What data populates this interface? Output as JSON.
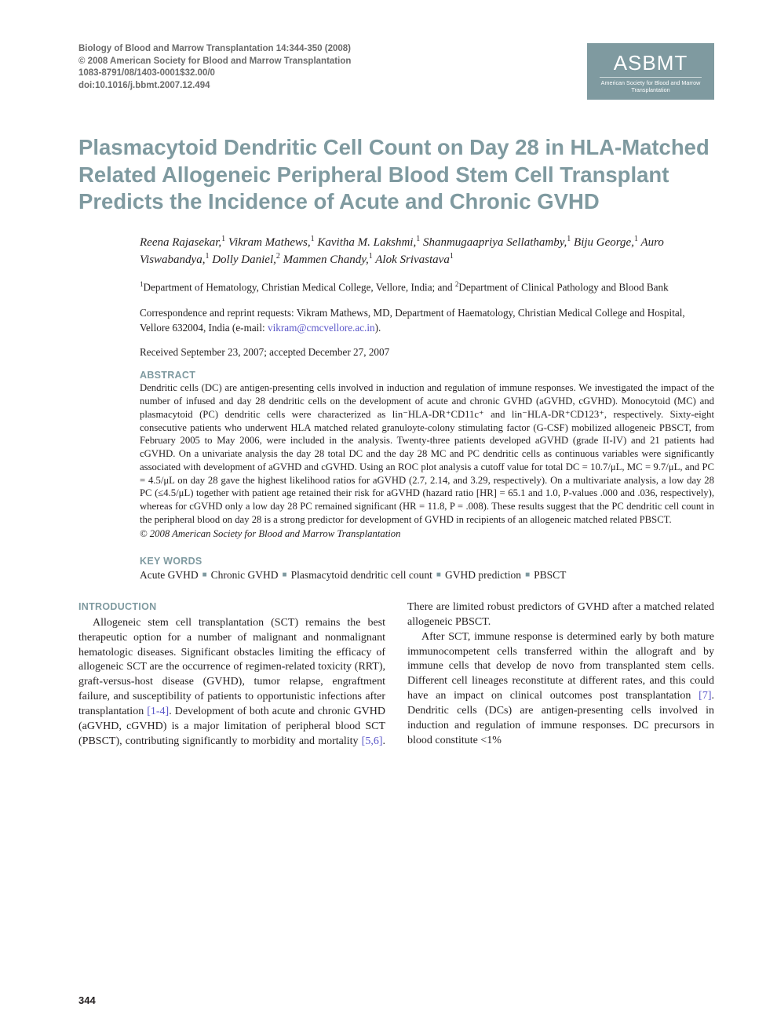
{
  "journal_meta": {
    "line1": "Biology of Blood and Marrow Transplantation 14:344-350 (2008)",
    "line2": "© 2008 American Society for Blood and Marrow Transplantation",
    "line3": "1083-8791/08/1403-0001$32.00/0",
    "line4": "doi:10.1016/j.bbmt.2007.12.494"
  },
  "logo": {
    "main": "ASBMT",
    "sub": "American Society for Blood and Marrow Transplantation"
  },
  "colors": {
    "teal": "#7f9aa0",
    "meta_gray": "#6b6b6b",
    "link": "#5b57c9",
    "text": "#231f20",
    "background": "#ffffff"
  },
  "title": "Plasmacytoid Dendritic Cell Count on Day 28 in HLA-Matched Related Allogeneic Peripheral Blood Stem Cell Transplant Predicts the Incidence of Acute and Chronic GVHD",
  "authors_html": "Reena Rajasekar,<sup>1</sup> Vikram Mathews,<sup>1</sup> Kavitha M. Lakshmi,<sup>1</sup> Shanmugaapriya Sellathamby,<sup>1</sup> Biju George,<sup>1</sup> Auro Viswabandya,<sup>1</sup> Dolly Daniel,<sup>2</sup> Mammen Chandy,<sup>1</sup> Alok Srivastava<sup>1</sup>",
  "affil_html": "<sup>1</sup>Department of Hematology, Christian Medical College, Vellore, India; and <sup>2</sup>Department of Clinical Pathology and Blood Bank",
  "corr_pre": "Correspondence and reprint requests: Vikram Mathews, MD, Department of Haematology, Christian Medical College and Hospital, Vellore 632004, India (e-mail: ",
  "corr_email": "vikram@cmcvellore.ac.in",
  "corr_post": ").",
  "dates": "Received September 23, 2007; accepted December 27, 2007",
  "labels": {
    "abstract": "ABSTRACT",
    "keywords": "KEY WORDS",
    "introduction": "INTRODUCTION"
  },
  "abstract": "Dendritic cells (DC) are antigen-presenting cells involved in induction and regulation of immune responses. We investigated the impact of the number of infused and day 28 dendritic cells on the development of acute and chronic GVHD (aGVHD, cGVHD). Monocytoid (MC) and plasmacytoid (PC) dendritic cells were characterized as lin⁻HLA-DR⁺CD11c⁺ and lin⁻HLA-DR⁺CD123⁺, respectively. Sixty-eight consecutive patients who underwent HLA matched related granuloyte-colony stimulating factor (G-CSF) mobilized allogeneic PBSCT, from February 2005 to May 2006, were included in the analysis. Twenty-three patients developed aGVHD (grade II-IV) and 21 patients had cGVHD. On a univariate analysis the day 28 total DC and the day 28 MC and PC dendritic cells as continuous variables were significantly associated with development of aGVHD and cGVHD. Using an ROC plot analysis a cutoff value for total DC = 10.7/μL, MC = 9.7/μL, and PC = 4.5/μL on day 28 gave the highest likelihood ratios for aGVHD (2.7, 2.14, and 3.29, respectively). On a multivariate analysis, a low day 28 PC (≤4.5/μL) together with patient age retained their risk for aGVHD (hazard ratio [HR] = 65.1 and 1.0, P-values .000 and .036, respectively), whereas for cGVHD only a low day 28 PC remained significant (HR = 11.8, P = .008). These results suggest that the PC dendritic cell count in the peripheral blood on day 28 is a strong predictor for development of GVHD in recipients of an allogeneic matched related PBSCT.",
  "copyright": "© 2008 American Society for Blood and Marrow Transplantation",
  "keywords": [
    "Acute GVHD",
    "Chronic GVHD",
    "Plasmacytoid dendritic cell count",
    "GVHD prediction",
    "PBSCT"
  ],
  "intro": {
    "p1_a": "Allogeneic stem cell transplantation (SCT) remains the best therapeutic option for a number of malignant and nonmalignant hematologic diseases. Significant obstacles limiting the efficacy of allogeneic SCT are the occurrence of regimen-related toxicity (RRT), graft-versus-host disease (GVHD), tumor relapse, engraftment failure, and susceptibility of patients to opportunistic infections after transplantation ",
    "cite1": "[1-4]",
    "p1_b": ". Development of both acute and chronic GVHD (aGVHD, cGVHD) is a major limitation of peripheral blood SCT (PBSCT), contributing significantly to morbidity and mortality ",
    "cite2": "[5,6]",
    "p1_c": ". There are limited robust predictors of GVHD after a matched related allogeneic PBSCT.",
    "p2_a": "After SCT, immune response is determined early by both mature immunocompetent cells transferred within the allograft and by immune cells that develop de novo from transplanted stem cells. Different cell lineages reconstitute at different rates, and this could have an impact on clinical outcomes post transplantation ",
    "cite3": "[7]",
    "p2_b": ". Dendritic cells (DCs) are antigen-presenting cells involved in induction and regulation of immune responses. DC precursors in blood constitute <1%"
  },
  "page_number": "344"
}
